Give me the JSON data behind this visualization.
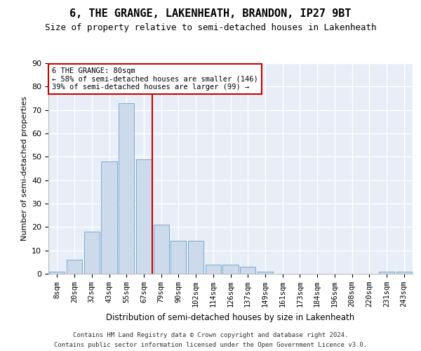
{
  "title": "6, THE GRANGE, LAKENHEATH, BRANDON, IP27 9BT",
  "subtitle": "Size of property relative to semi-detached houses in Lakenheath",
  "xlabel": "Distribution of semi-detached houses by size in Lakenheath",
  "ylabel": "Number of semi-detached properties",
  "bar_color": "#ccdaeb",
  "bar_edge_color": "#7aaace",
  "background_color": "#e8eef8",
  "grid_color": "#ffffff",
  "categories": [
    "8sqm",
    "20sqm",
    "32sqm",
    "43sqm",
    "55sqm",
    "67sqm",
    "79sqm",
    "90sqm",
    "102sqm",
    "114sqm",
    "126sqm",
    "137sqm",
    "149sqm",
    "161sqm",
    "173sqm",
    "184sqm",
    "196sqm",
    "208sqm",
    "220sqm",
    "231sqm",
    "243sqm"
  ],
  "values": [
    1,
    6,
    18,
    48,
    73,
    49,
    21,
    14,
    14,
    4,
    4,
    3,
    1,
    0,
    0,
    0,
    0,
    0,
    0,
    1,
    1
  ],
  "vline_x": 5.5,
  "vline_color": "#cc0000",
  "annotation_box_color": "#cc0000",
  "annotation_title": "6 THE GRANGE: 80sqm",
  "annotation_line1": "← 58% of semi-detached houses are smaller (146)",
  "annotation_line2": "39% of semi-detached houses are larger (99) →",
  "footer_line1": "Contains HM Land Registry data © Crown copyright and database right 2024.",
  "footer_line2": "Contains public sector information licensed under the Open Government Licence v3.0.",
  "ylim": [
    0,
    90
  ],
  "yticks": [
    0,
    10,
    20,
    30,
    40,
    50,
    60,
    70,
    80,
    90
  ],
  "title_fontsize": 11,
  "subtitle_fontsize": 9,
  "ylabel_fontsize": 8,
  "xlabel_fontsize": 8.5,
  "tick_fontsize": 7.5,
  "annot_fontsize": 7.5,
  "footer_fontsize": 6.5
}
